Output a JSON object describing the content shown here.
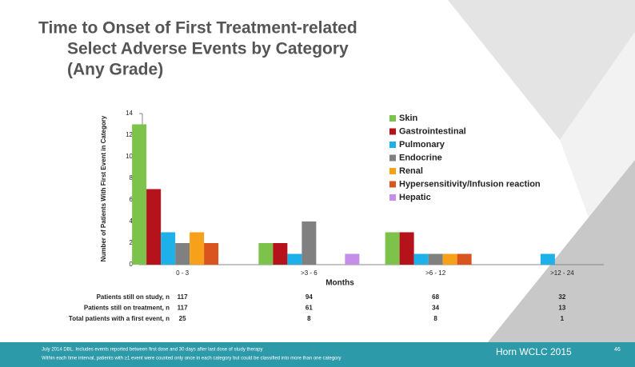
{
  "chart_data": {
    "type": "bar",
    "title": [
      "Time to Onset of First Treatment-related",
      "Select Adverse Events by Category",
      "(Any Grade)"
    ],
    "ylabel": "Number of Patients With First Event in Category",
    "xlabel": "Months",
    "categories": [
      "0 - 3",
      ">3 - 6",
      ">6 - 12",
      ">12 - 24"
    ],
    "series": [
      {
        "name": "Skin",
        "color": "#7dc24b",
        "values": [
          13,
          2,
          3,
          0
        ]
      },
      {
        "name": "Gastrointestinal",
        "color": "#b5121b",
        "values": [
          7,
          2,
          3,
          0
        ]
      },
      {
        "name": "Pulmonary",
        "color": "#1eb0e8",
        "values": [
          3,
          1,
          1,
          1
        ]
      },
      {
        "name": "Endocrine",
        "color": "#808080",
        "values": [
          2,
          4,
          1,
          0
        ]
      },
      {
        "name": "Renal",
        "color": "#f7a11a",
        "values": [
          3,
          0,
          1,
          0
        ]
      },
      {
        "name": "Hypersensitivity/Infusion reaction",
        "color": "#d9541e",
        "values": [
          2,
          0,
          1,
          0
        ]
      },
      {
        "name": "Hepatic",
        "color": "#c58ee8",
        "values": [
          0,
          1,
          0,
          0
        ]
      }
    ],
    "ylim": [
      0,
      14
    ],
    "yticks": [
      0,
      2,
      4,
      6,
      8,
      10,
      12,
      14
    ],
    "table": {
      "rows": [
        {
          "label": "Patients still on study, n",
          "values": [
            "117",
            "94",
            "68",
            "32"
          ]
        },
        {
          "label": "Patients still on treatment, n",
          "values": [
            "117",
            "61",
            "34",
            "13"
          ]
        },
        {
          "label": "Total patients with a first event, n",
          "values": [
            "25",
            "8",
            "8",
            "1"
          ]
        }
      ]
    },
    "footnotes": [
      "July 2014 DBL. Includes events reported between first dose and 30 days after last dose of study therapy",
      "Within each time interval, patients with ≥1 event were counted only once in each category but could be classified into more than one category"
    ],
    "source": "Horn WCLC 2015",
    "page_number": "46"
  }
}
